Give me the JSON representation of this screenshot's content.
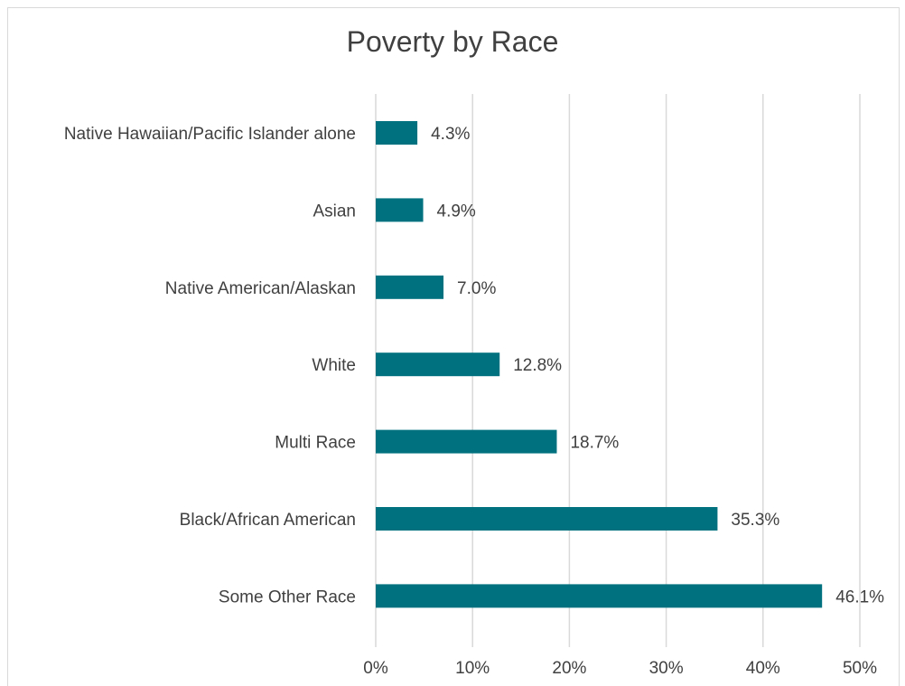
{
  "chart_data": {
    "type": "bar",
    "orientation": "horizontal",
    "title": "Poverty by Race",
    "categories": [
      "Native Hawaiian/Pacific Islander alone",
      "Asian",
      "Native American/Alaskan",
      "White",
      "Multi Race",
      "Black/African American",
      "Some Other Race"
    ],
    "values": [
      4.3,
      4.9,
      7.0,
      12.8,
      18.7,
      35.3,
      46.1
    ],
    "data_labels": [
      "4.3%",
      "4.9%",
      "7.0%",
      "12.8%",
      "18.7%",
      "35.3%",
      "46.1%"
    ],
    "x_ticks": [
      0,
      10,
      20,
      30,
      40,
      50
    ],
    "x_tick_labels": [
      "0%",
      "10%",
      "20%",
      "30%",
      "40%",
      "50%"
    ],
    "xlim": [
      0,
      50
    ],
    "grid": true,
    "legend": "none",
    "bar_color": "#00717f",
    "xlabel": "",
    "ylabel": ""
  }
}
